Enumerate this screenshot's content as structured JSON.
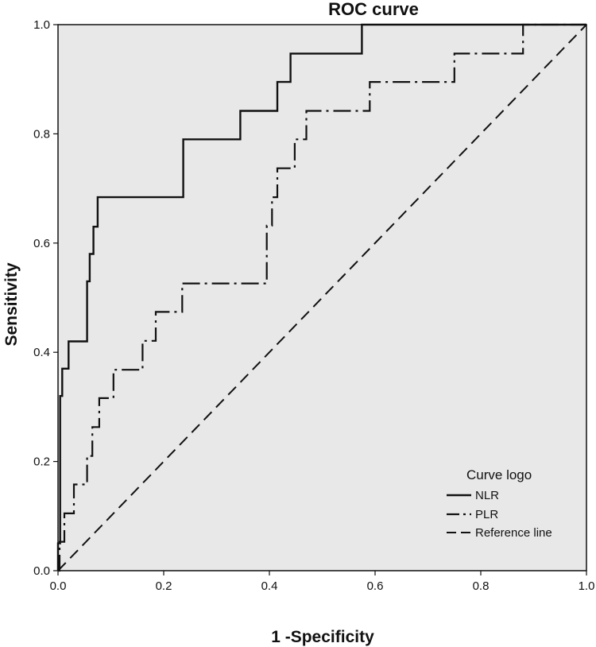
{
  "chart_data": {
    "type": "line",
    "title": "ROC curve",
    "xlabel": "1 -Specificity",
    "ylabel": "Sensitivity",
    "xlim": [
      0,
      1
    ],
    "ylim": [
      0,
      1
    ],
    "x_ticks": [
      "0.0",
      "0.2",
      "0.4",
      "0.6",
      "0.8",
      "1.0"
    ],
    "y_ticks": [
      "0.0",
      "0.2",
      "0.4",
      "0.6",
      "0.8",
      "1.0"
    ],
    "grid": false,
    "plot_background": "#e8e8e8",
    "legend": {
      "title": "Curve logo",
      "position": "bottom-right",
      "entries": [
        "NLR",
        "PLR",
        "Reference line"
      ]
    },
    "series": [
      {
        "name": "NLR",
        "style": "solid",
        "x": [
          0.0,
          0.0,
          0.004,
          0.004,
          0.008,
          0.008,
          0.02,
          0.02,
          0.055,
          0.055,
          0.06,
          0.06,
          0.067,
          0.067,
          0.075,
          0.075,
          0.237,
          0.237,
          0.345,
          0.345,
          0.415,
          0.415,
          0.44,
          0.44,
          0.575,
          0.575,
          1.0
        ],
        "y": [
          0.0,
          0.05,
          0.05,
          0.32,
          0.32,
          0.37,
          0.37,
          0.42,
          0.42,
          0.53,
          0.53,
          0.58,
          0.58,
          0.63,
          0.63,
          0.684,
          0.684,
          0.79,
          0.79,
          0.842,
          0.842,
          0.895,
          0.895,
          0.947,
          0.947,
          1.0,
          1.0
        ]
      },
      {
        "name": "PLR",
        "style": "dash-dot",
        "x": [
          0.0,
          0.003,
          0.003,
          0.012,
          0.012,
          0.03,
          0.03,
          0.055,
          0.055,
          0.065,
          0.065,
          0.078,
          0.078,
          0.105,
          0.105,
          0.16,
          0.16,
          0.185,
          0.185,
          0.235,
          0.235,
          0.395,
          0.395,
          0.405,
          0.405,
          0.415,
          0.415,
          0.448,
          0.448,
          0.47,
          0.47,
          0.59,
          0.59,
          0.75,
          0.75,
          0.88,
          0.88,
          1.0
        ],
        "y": [
          0.0,
          0.0,
          0.053,
          0.053,
          0.105,
          0.105,
          0.158,
          0.158,
          0.21,
          0.21,
          0.263,
          0.263,
          0.316,
          0.316,
          0.368,
          0.368,
          0.421,
          0.421,
          0.474,
          0.474,
          0.526,
          0.526,
          0.632,
          0.632,
          0.684,
          0.684,
          0.737,
          0.737,
          0.79,
          0.79,
          0.842,
          0.842,
          0.895,
          0.895,
          0.947,
          0.947,
          1.0,
          1.0
        ]
      },
      {
        "name": "Reference line",
        "style": "dashed",
        "x": [
          0,
          1
        ],
        "y": [
          0,
          1
        ]
      }
    ]
  }
}
